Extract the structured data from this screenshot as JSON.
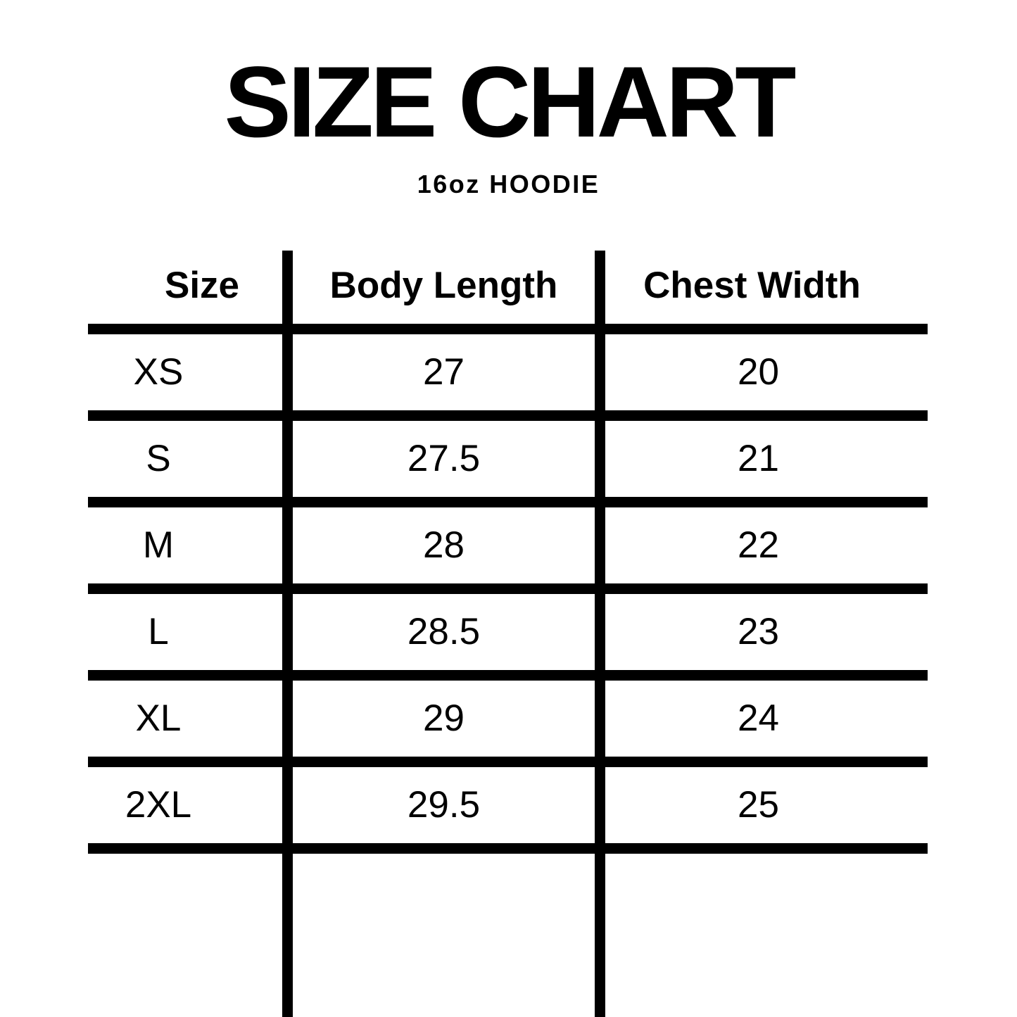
{
  "title": "SIZE CHART",
  "subtitle": "16oz HOODIE",
  "table": {
    "columns": [
      "Size",
      "Body Length",
      "Chest Width"
    ],
    "rows": [
      {
        "size": "XS",
        "body_length": "27",
        "chest_width": "20"
      },
      {
        "size": "S",
        "body_length": "27.5",
        "chest_width": "21"
      },
      {
        "size": "M",
        "body_length": "28",
        "chest_width": "22"
      },
      {
        "size": "L",
        "body_length": "28.5",
        "chest_width": "23"
      },
      {
        "size": "XL",
        "body_length": "29",
        "chest_width": "24"
      },
      {
        "size": "2XL",
        "body_length": "29.5",
        "chest_width": "25"
      }
    ]
  },
  "colors": {
    "ink": "#000000",
    "background": "#ffffff"
  },
  "chart_data": {
    "type": "table",
    "title": "SIZE CHART",
    "subtitle": "16oz HOODIE",
    "columns": [
      "Size",
      "Body Length",
      "Chest Width"
    ],
    "rows": [
      [
        "XS",
        27,
        20
      ],
      [
        "S",
        27.5,
        21
      ],
      [
        "M",
        28,
        22
      ],
      [
        "L",
        28.5,
        23
      ],
      [
        "XL",
        29,
        24
      ],
      [
        "2XL",
        29.5,
        25
      ]
    ],
    "layout_hints": {
      "grid": "thick black horizontal rules between rows; two vertical dividers extending to bottom edge; no outer border",
      "header_style": "bold, same size as data",
      "units": "inches (implied, not labeled)"
    }
  }
}
